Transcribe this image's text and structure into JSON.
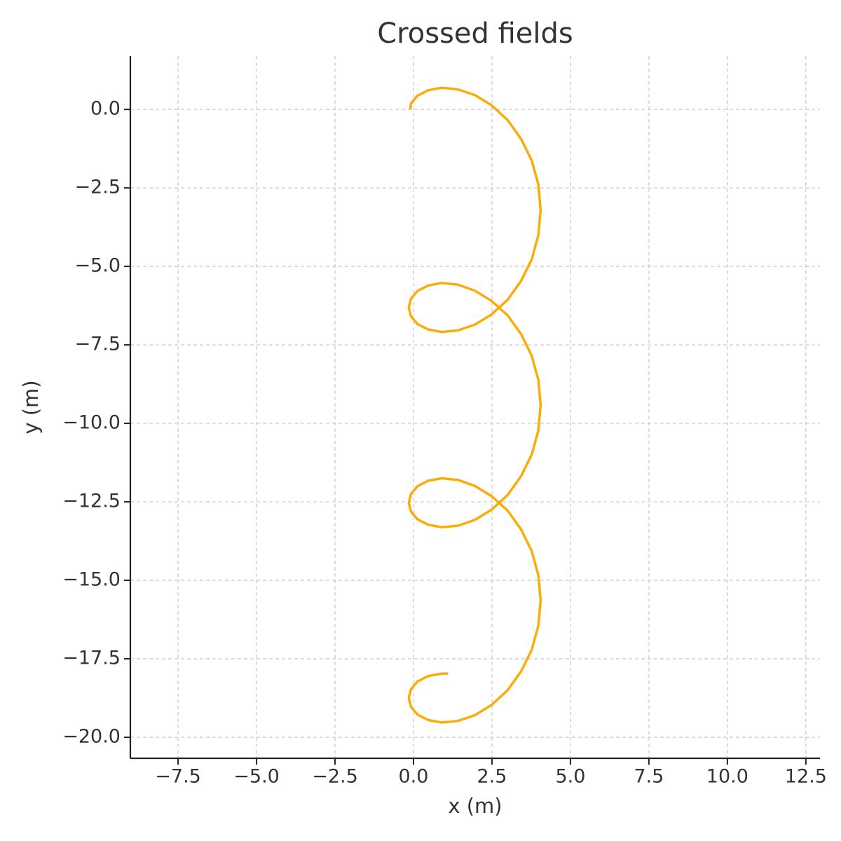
{
  "chart_data": {
    "type": "line",
    "title": "Crossed fields",
    "xlabel": "x (m)",
    "ylabel": "y (m)",
    "color": "#f9ad0a",
    "grid": true,
    "xlim": [
      -9.02,
      12.95
    ],
    "ylim": [
      -20.67,
      1.7
    ],
    "xticks": [
      {
        "value": -7.5,
        "label": "−7.5"
      },
      {
        "value": -5,
        "label": "−5.0"
      },
      {
        "value": -2.5,
        "label": "−2.5"
      },
      {
        "value": 0,
        "label": "0.0"
      },
      2.5,
      {
        "value": 5,
        "label": "5.0"
      },
      7.5,
      {
        "value": 10,
        "label": "10.0"
      },
      12.5
    ],
    "yticks": [
      {
        "value": 0,
        "label": "0.0"
      },
      {
        "value": -2.5,
        "label": "−2.5"
      },
      {
        "value": -5,
        "label": "−5.0"
      },
      {
        "value": -7.5,
        "label": "−7.5"
      },
      {
        "value": -10,
        "label": "−10.0"
      },
      {
        "value": -12.5,
        "label": "−12.5"
      },
      {
        "value": -15,
        "label": "−15.0"
      },
      {
        "value": -17.5,
        "label": "−17.5"
      },
      {
        "value": -20,
        "label": "−20.0"
      }
    ],
    "x": [
      -0.1,
      -0.08,
      0.13,
      0.47,
      0.9,
      1.41,
      1.95,
      2.49,
      3.0,
      3.43,
      3.77,
      3.98,
      4.05,
      3.98,
      3.77,
      3.43,
      3.0,
      2.49,
      1.95,
      1.41,
      0.9,
      0.47,
      0.13,
      -0.08,
      -0.15,
      -0.08,
      0.13,
      0.47,
      0.9,
      1.41,
      1.95,
      2.49,
      3.0,
      3.43,
      3.77,
      3.98,
      4.05,
      3.98,
      3.77,
      3.43,
      3.0,
      2.49,
      1.95,
      1.41,
      0.9,
      0.47,
      0.13,
      -0.08,
      -0.15,
      -0.08,
      0.13,
      0.47,
      0.9,
      1.41,
      1.95,
      2.49,
      3.0,
      3.43,
      3.77,
      3.98,
      4.05,
      3.98,
      3.77,
      3.43,
      3.0,
      2.49,
      1.95,
      1.41,
      0.9,
      0.47,
      0.13,
      -0.08,
      -0.15,
      -0.08,
      0.13,
      0.47,
      0.9,
      1.1
    ],
    "y": [
      0.0,
      0.19,
      0.44,
      0.61,
      0.69,
      0.64,
      0.46,
      0.13,
      -0.34,
      -0.94,
      -1.63,
      -2.4,
      -3.2,
      -4.0,
      -4.77,
      -5.46,
      -6.06,
      -6.53,
      -6.86,
      -7.04,
      -7.09,
      -7.01,
      -6.84,
      -6.59,
      -6.31,
      -6.03,
      -5.78,
      -5.61,
      -5.53,
      -5.58,
      -5.77,
      -6.1,
      -6.56,
      -7.16,
      -7.85,
      -8.62,
      -9.42,
      -10.22,
      -10.99,
      -11.68,
      -12.28,
      -12.75,
      -13.08,
      -13.26,
      -13.31,
      -13.23,
      -13.06,
      -12.81,
      -12.53,
      -12.25,
      -12.0,
      -11.83,
      -11.75,
      -11.8,
      -11.99,
      -12.32,
      -12.78,
      -13.38,
      -14.07,
      -14.84,
      -15.64,
      -16.44,
      -17.21,
      -17.9,
      -18.5,
      -18.97,
      -19.3,
      -19.48,
      -19.53,
      -19.45,
      -19.28,
      -19.03,
      -18.75,
      -18.47,
      -18.22,
      -18.05,
      -17.97,
      -17.97
    ]
  }
}
